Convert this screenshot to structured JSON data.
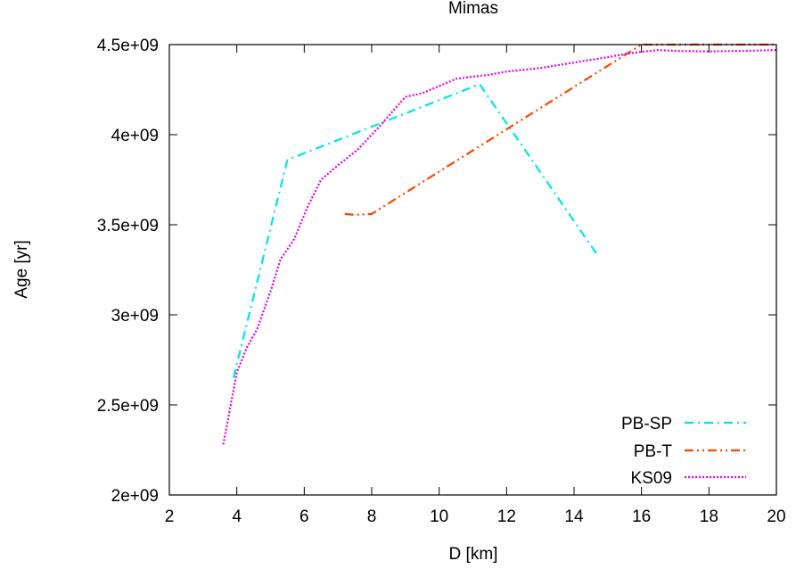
{
  "chart_data": {
    "type": "line",
    "title": "Mimas",
    "xlabel": "D [km]",
    "ylabel": "Age [yr]",
    "xlim": [
      2,
      20
    ],
    "ylim": [
      2000000000,
      4500000000
    ],
    "xticks": [
      2,
      4,
      6,
      8,
      10,
      12,
      14,
      16,
      18,
      20
    ],
    "xtick_labels": [
      "2",
      "4",
      "6",
      "8",
      "10",
      "12",
      "14",
      "16",
      "18",
      "20"
    ],
    "yticks": [
      2000000000,
      2500000000,
      3000000000,
      3500000000,
      4000000000,
      4500000000
    ],
    "ytick_labels": [
      "2e+09",
      "2.5e+09",
      "3e+09",
      "3.5e+09",
      "4e+09",
      "4.5e+09"
    ],
    "grid": false,
    "legend_position": "bottom-right",
    "series": [
      {
        "name": "PB-SP",
        "color": "#00e5e5",
        "dash": "dash-dot",
        "x": [
          3.9,
          5.5,
          11.2,
          14.7
        ],
        "y": [
          2650000000,
          3860000000,
          4280000000,
          3330000000
        ]
      },
      {
        "name": "PB-T",
        "color": "#ff4500",
        "dash": "dash-dot-dot",
        "x": [
          7.2,
          7.5,
          8.0,
          16.0,
          20.0
        ],
        "y": [
          3560000000,
          3555000000,
          3560000000,
          4500000000,
          4500000000
        ]
      },
      {
        "name": "KS09",
        "color": "#e500e5",
        "dash": "dotted",
        "x": [
          3.6,
          3.8,
          4.0,
          4.3,
          4.6,
          5.0,
          5.3,
          5.7,
          6.1,
          6.5,
          7.0,
          7.6,
          8.2,
          9.0,
          9.5,
          10.0,
          10.5,
          10.9,
          11.4,
          12.0,
          13.0,
          14.0,
          15.0,
          15.6,
          16.0,
          16.5,
          17.0,
          18.0,
          19.0,
          20.0
        ],
        "y": [
          2280000000,
          2480000000,
          2680000000,
          2820000000,
          2920000000,
          3130000000,
          3310000000,
          3420000000,
          3600000000,
          3750000000,
          3830000000,
          3920000000,
          4040000000,
          4210000000,
          4230000000,
          4270000000,
          4310000000,
          4320000000,
          4330000000,
          4350000000,
          4370000000,
          4400000000,
          4430000000,
          4450000000,
          4460000000,
          4470000000,
          4465000000,
          4462000000,
          4465000000,
          4470000000
        ]
      }
    ]
  }
}
